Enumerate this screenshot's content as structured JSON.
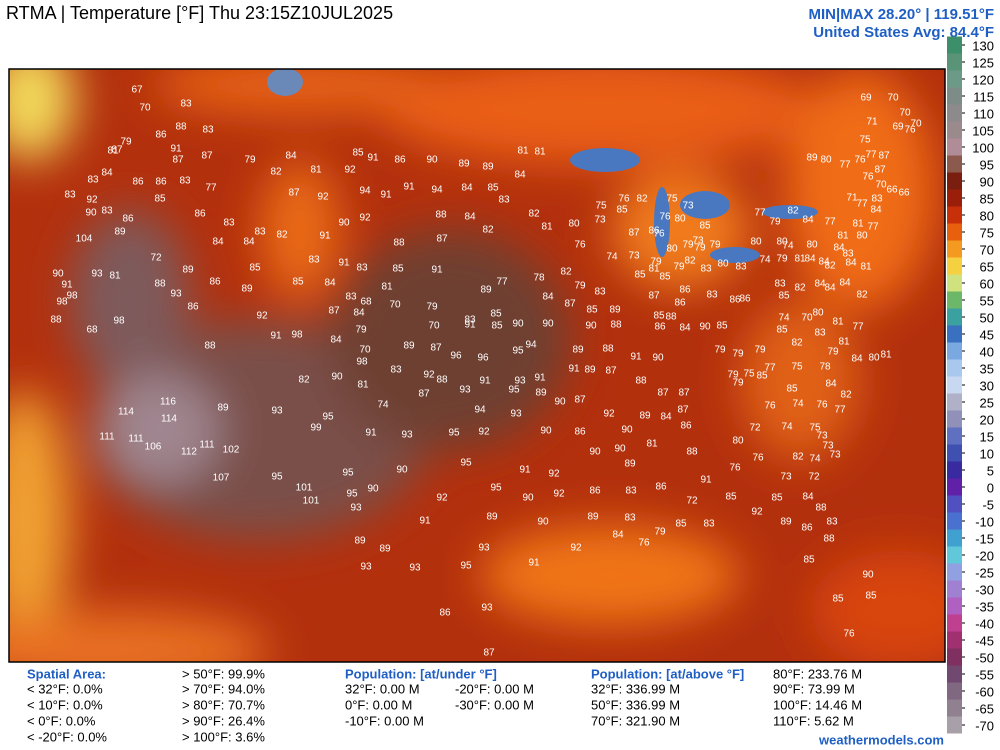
{
  "header": {
    "title": "RTMA | Temperature [°F]  Thu 23:15Z10JUL2025",
    "minmax": "MIN|MAX 28.20° | 119.51°F",
    "avg": "United States Avg: 84.4°F"
  },
  "colorbar": {
    "ticks": [
      130,
      125,
      120,
      115,
      110,
      105,
      100,
      95,
      90,
      85,
      80,
      75,
      70,
      65,
      60,
      55,
      50,
      45,
      40,
      35,
      30,
      25,
      20,
      15,
      10,
      5,
      0,
      -5,
      -10,
      -15,
      -20,
      -25,
      -30,
      -35,
      -40,
      -45,
      -50,
      -55,
      -60,
      -65,
      -70
    ]
  },
  "map": {
    "labels": [
      67,
      70,
      83,
      88,
      83,
      79,
      86,
      91,
      87,
      87,
      87,
      81,
      83,
      84,
      86,
      86,
      83,
      77,
      83,
      92,
      85,
      90,
      83,
      86,
      86,
      83,
      89,
      104,
      84,
      84,
      83,
      82,
      84,
      79,
      82,
      81,
      92,
      85,
      91,
      86,
      90,
      89,
      89,
      84,
      81,
      81,
      87,
      92,
      94,
      91,
      91,
      94,
      84,
      85,
      83,
      90,
      91,
      92,
      88,
      84,
      82,
      88,
      87,
      82,
      81,
      80,
      75,
      76,
      73,
      76,
      74,
      73,
      72,
      89,
      88,
      86,
      93,
      86,
      85,
      89,
      90,
      93,
      81,
      91,
      98,
      98,
      88,
      68,
      98,
      83,
      91,
      83,
      85,
      91,
      81,
      85,
      84,
      83,
      68,
      70,
      79,
      83,
      85,
      89,
      77,
      78,
      82,
      79,
      83,
      84,
      87,
      85,
      89,
      84,
      87,
      79,
      84,
      70,
      89,
      70,
      91,
      85,
      90,
      90,
      90,
      88,
      87,
      96,
      96,
      95,
      94,
      92,
      88,
      91,
      98,
      98,
      82,
      90,
      81,
      83,
      92,
      88,
      91,
      93,
      91,
      89,
      88,
      91,
      90,
      91,
      89,
      87,
      88,
      87,
      87,
      87,
      93,
      95,
      89,
      90,
      87,
      92,
      89,
      84,
      87,
      86,
      94,
      93,
      74,
      91,
      93,
      95,
      92,
      90,
      86,
      90,
      81,
      88,
      90,
      90,
      89,
      95,
      91,
      92,
      90,
      95,
      90,
      95,
      93,
      101,
      101,
      95,
      107,
      116,
      114,
      114,
      111,
      111,
      106,
      112,
      111,
      102,
      89,
      93,
      95,
      99,
      92,
      95,
      90,
      92,
      86,
      83,
      86,
      91,
      89,
      90,
      89,
      83,
      72,
      91,
      83,
      85,
      89,
      89,
      93,
      93,
      95,
      93,
      91,
      92,
      84,
      76,
      79,
      85,
      92,
      85,
      84,
      89,
      86,
      88,
      83,
      88,
      85,
      90,
      85,
      85,
      76,
      86,
      93,
      87,
      89,
      80,
      77,
      76,
      77,
      75,
      87,
      87,
      76,
      70,
      66,
      66,
      69,
      70,
      71,
      69,
      70,
      76,
      70,
      71,
      83,
      77,
      84,
      77,
      79,
      82,
      84,
      77,
      81,
      77,
      81,
      80,
      80,
      80,
      74,
      80,
      84,
      83,
      84,
      84,
      84,
      81,
      74,
      79,
      81,
      82,
      84,
      84,
      82,
      83,
      82,
      84,
      85,
      80,
      81,
      77,
      74,
      70,
      85,
      82,
      83,
      81,
      84,
      80,
      81,
      79,
      79,
      79,
      79,
      75,
      77,
      75,
      78,
      79,
      79,
      85,
      85,
      84,
      82,
      76,
      77,
      76,
      74,
      72,
      74,
      75,
      73,
      73,
      73,
      82,
      74,
      80,
      76,
      76,
      73,
      72,
      79,
      85,
      81,
      85,
      79,
      83,
      82,
      80,
      79,
      79,
      76,
      76,
      80,
      75,
      73,
      73,
      79,
      85,
      82,
      85,
      87,
      86,
      83,
      80,
      87,
      86,
      83,
      86,
      86,
      86,
      88,
      86,
      84,
      90,
      85,
      85
    ]
  },
  "stats": {
    "spatial_title": "Spatial Area:",
    "spatial": [
      "< 32°F: 0.0%",
      "< 10°F: 0.0%",
      "< 0°F: 0.0%",
      "< -20°F: 0.0%",
      "> 50°F: 99.9%",
      "> 70°F: 94.0%",
      "> 80°F: 70.7%",
      "> 90°F: 26.4%",
      "> 100°F: 3.6%"
    ],
    "under_title": "Population: [at/under °F]",
    "under": [
      "32°F: 0.00 M",
      "-20°F: 0.00 M",
      "0°F: 0.00 M",
      "-30°F: 0.00 M",
      "-10°F: 0.00 M"
    ],
    "above_title": "Population: [at/above °F]",
    "above": [
      "32°F: 336.99 M",
      "50°F: 336.99 M",
      "70°F: 321.90 M",
      "80°F: 233.76 M",
      "90°F: 73.99 M",
      "100°F: 14.46 M",
      "110°F: 5.62 M"
    ]
  },
  "footer": "weathermodels.com"
}
